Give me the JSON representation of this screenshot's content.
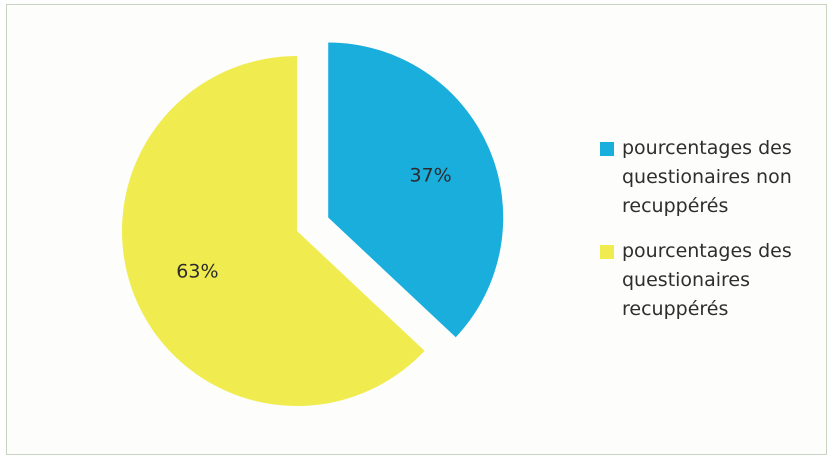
{
  "chart_data": {
    "type": "pie",
    "title": "",
    "slices": [
      {
        "label": "pourcentages des questionaires non recuppérés",
        "value": 37,
        "display": "37%",
        "color": "#1aaedd"
      },
      {
        "label": "pourcentages des questionaires recuppérés",
        "value": 63,
        "display": "63%",
        "color": "#f0ec50"
      }
    ],
    "legend_position": "right",
    "start_angle_deg": 0,
    "exploded": true
  }
}
